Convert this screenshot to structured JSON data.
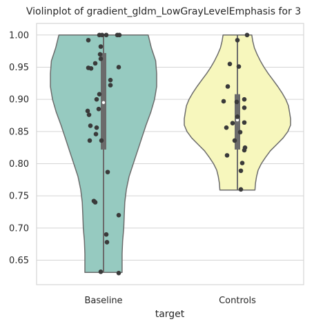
{
  "chart_data": {
    "type": "violin",
    "title": "Violinplot of gradient_gldm_LowGrayLevelEmphasis for 3",
    "xlabel": "target",
    "ylabel": "",
    "categories": [
      "Baseline",
      "Controls"
    ],
    "ylim": [
      0.612,
      1.018
    ],
    "yticks": [
      0.65,
      0.7,
      0.75,
      0.8,
      0.85,
      0.9,
      0.95,
      1.0
    ],
    "ytick_labels": [
      "0.65",
      "0.70",
      "0.75",
      "0.80",
      "0.85",
      "0.90",
      "0.95",
      "1.00"
    ],
    "grid": true,
    "colors": {
      "Baseline": "#96cac0",
      "Controls": "#f7f7bd",
      "outline": "#6b6b6b",
      "box": "#6b6b6b",
      "points": "#3a3a3a",
      "grid": "#d4d4d4"
    },
    "violins": [
      {
        "name": "Baseline",
        "range": [
          0.631,
          1.0
        ],
        "quartiles": [
          0.822,
          0.895,
          0.972
        ],
        "profile": [
          [
            0.631,
            0.35
          ],
          [
            0.64,
            0.35
          ],
          [
            0.66,
            0.35
          ],
          [
            0.68,
            0.36
          ],
          [
            0.7,
            0.38
          ],
          [
            0.72,
            0.39
          ],
          [
            0.74,
            0.4
          ],
          [
            0.76,
            0.43
          ],
          [
            0.78,
            0.48
          ],
          [
            0.8,
            0.56
          ],
          [
            0.82,
            0.64
          ],
          [
            0.84,
            0.72
          ],
          [
            0.86,
            0.8
          ],
          [
            0.88,
            0.89
          ],
          [
            0.9,
            0.96
          ],
          [
            0.92,
            1.0
          ],
          [
            0.94,
            1.0
          ],
          [
            0.96,
            0.98
          ],
          [
            0.98,
            0.9
          ],
          [
            1.0,
            0.84
          ]
        ],
        "points": [
          {
            "y": 0.632,
            "dx": -0.04
          },
          {
            "y": 0.63,
            "dx": 0.22
          },
          {
            "y": 0.678,
            "dx": 0.05
          },
          {
            "y": 0.69,
            "dx": 0.04
          },
          {
            "y": 0.72,
            "dx": 0.22
          },
          {
            "y": 0.742,
            "dx": -0.14
          },
          {
            "y": 0.74,
            "dx": -0.12
          },
          {
            "y": 0.787,
            "dx": 0.06
          },
          {
            "y": 0.836,
            "dx": -0.2
          },
          {
            "y": 0.836,
            "dx": -0.03
          },
          {
            "y": 0.846,
            "dx": -0.11
          },
          {
            "y": 0.859,
            "dx": -0.19
          },
          {
            "y": 0.856,
            "dx": -0.1
          },
          {
            "y": 0.876,
            "dx": -0.21
          },
          {
            "y": 0.882,
            "dx": -0.23
          },
          {
            "y": 0.885,
            "dx": -0.07
          },
          {
            "y": 0.9,
            "dx": -0.1
          },
          {
            "y": 0.908,
            "dx": -0.06
          },
          {
            "y": 0.922,
            "dx": 0.1
          },
          {
            "y": 0.93,
            "dx": 0.1
          },
          {
            "y": 0.949,
            "dx": -0.22
          },
          {
            "y": 0.948,
            "dx": -0.18
          },
          {
            "y": 0.95,
            "dx": 0.22
          },
          {
            "y": 0.956,
            "dx": -0.12
          },
          {
            "y": 0.963,
            "dx": -0.04
          },
          {
            "y": 0.97,
            "dx": -0.05
          },
          {
            "y": 0.982,
            "dx": -0.04
          },
          {
            "y": 0.992,
            "dx": -0.22
          },
          {
            "y": 1.0,
            "dx": -0.06
          },
          {
            "y": 1.0,
            "dx": -0.02
          },
          {
            "y": 1.0,
            "dx": 0.04
          },
          {
            "y": 1.0,
            "dx": 0.2
          },
          {
            "y": 1.0,
            "dx": 0.23
          }
        ]
      },
      {
        "name": "Controls",
        "range": [
          0.759,
          1.0
        ],
        "quartiles": [
          0.822,
          0.868,
          0.908
        ],
        "profile": [
          [
            0.759,
            0.33
          ],
          [
            0.77,
            0.34
          ],
          [
            0.78,
            0.36
          ],
          [
            0.79,
            0.39
          ],
          [
            0.8,
            0.45
          ],
          [
            0.81,
            0.53
          ],
          [
            0.82,
            0.62
          ],
          [
            0.83,
            0.74
          ],
          [
            0.84,
            0.86
          ],
          [
            0.85,
            0.95
          ],
          [
            0.86,
            1.0
          ],
          [
            0.87,
            1.0
          ],
          [
            0.88,
            0.98
          ],
          [
            0.89,
            0.96
          ],
          [
            0.9,
            0.91
          ],
          [
            0.91,
            0.84
          ],
          [
            0.92,
            0.76
          ],
          [
            0.93,
            0.67
          ],
          [
            0.94,
            0.58
          ],
          [
            0.95,
            0.5
          ],
          [
            0.96,
            0.43
          ],
          [
            0.97,
            0.37
          ],
          [
            0.98,
            0.32
          ],
          [
            0.99,
            0.29
          ],
          [
            1.0,
            0.27
          ]
        ],
        "points": [
          {
            "y": 0.76,
            "dx": 0.05
          },
          {
            "y": 0.789,
            "dx": 0.05
          },
          {
            "y": 0.801,
            "dx": 0.07
          },
          {
            "y": 0.813,
            "dx": -0.15
          },
          {
            "y": 0.821,
            "dx": 0.1
          },
          {
            "y": 0.825,
            "dx": 0.11
          },
          {
            "y": 0.836,
            "dx": -0.04
          },
          {
            "y": 0.849,
            "dx": 0.04
          },
          {
            "y": 0.856,
            "dx": -0.16
          },
          {
            "y": 0.863,
            "dx": -0.07
          },
          {
            "y": 0.864,
            "dx": 0.1
          },
          {
            "y": 0.873,
            "dx": 0.0
          },
          {
            "y": 0.887,
            "dx": 0.1
          },
          {
            "y": 0.896,
            "dx": -0.01
          },
          {
            "y": 0.897,
            "dx": -0.2
          },
          {
            "y": 0.9,
            "dx": 0.1
          },
          {
            "y": 0.92,
            "dx": -0.14
          },
          {
            "y": 0.951,
            "dx": 0.02
          },
          {
            "y": 0.955,
            "dx": -0.11
          },
          {
            "y": 0.992,
            "dx": 0.0
          },
          {
            "y": 1.0,
            "dx": 0.14
          }
        ]
      }
    ]
  }
}
